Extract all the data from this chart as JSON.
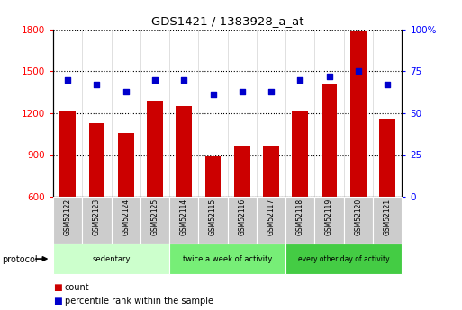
{
  "title": "GDS1421 / 1383928_a_at",
  "categories": [
    "GSM52122",
    "GSM52123",
    "GSM52124",
    "GSM52125",
    "GSM52114",
    "GSM52115",
    "GSM52116",
    "GSM52117",
    "GSM52118",
    "GSM52119",
    "GSM52120",
    "GSM52121"
  ],
  "count_values": [
    1220,
    1130,
    1060,
    1290,
    1250,
    890,
    960,
    960,
    1210,
    1410,
    1790,
    1160
  ],
  "percentile_values": [
    70,
    67,
    63,
    70,
    70,
    61,
    63,
    63,
    70,
    72,
    75,
    67
  ],
  "bar_color": "#cc0000",
  "dot_color": "#0000cc",
  "ylim_left": [
    600,
    1800
  ],
  "ylim_right": [
    0,
    100
  ],
  "yticks_left": [
    600,
    900,
    1200,
    1500,
    1800
  ],
  "yticks_right": [
    0,
    25,
    50,
    75,
    100
  ],
  "groups": [
    {
      "label": "sedentary",
      "start": 0,
      "end": 4,
      "color": "#ccffcc"
    },
    {
      "label": "twice a week of activity",
      "start": 4,
      "end": 8,
      "color": "#77ee77"
    },
    {
      "label": "every other day of activity",
      "start": 8,
      "end": 12,
      "color": "#44cc44"
    }
  ],
  "protocol_label": "protocol",
  "legend_count_label": "count",
  "legend_pct_label": "percentile rank within the sample",
  "bar_width": 0.55,
  "tick_area_color": "#cccccc"
}
